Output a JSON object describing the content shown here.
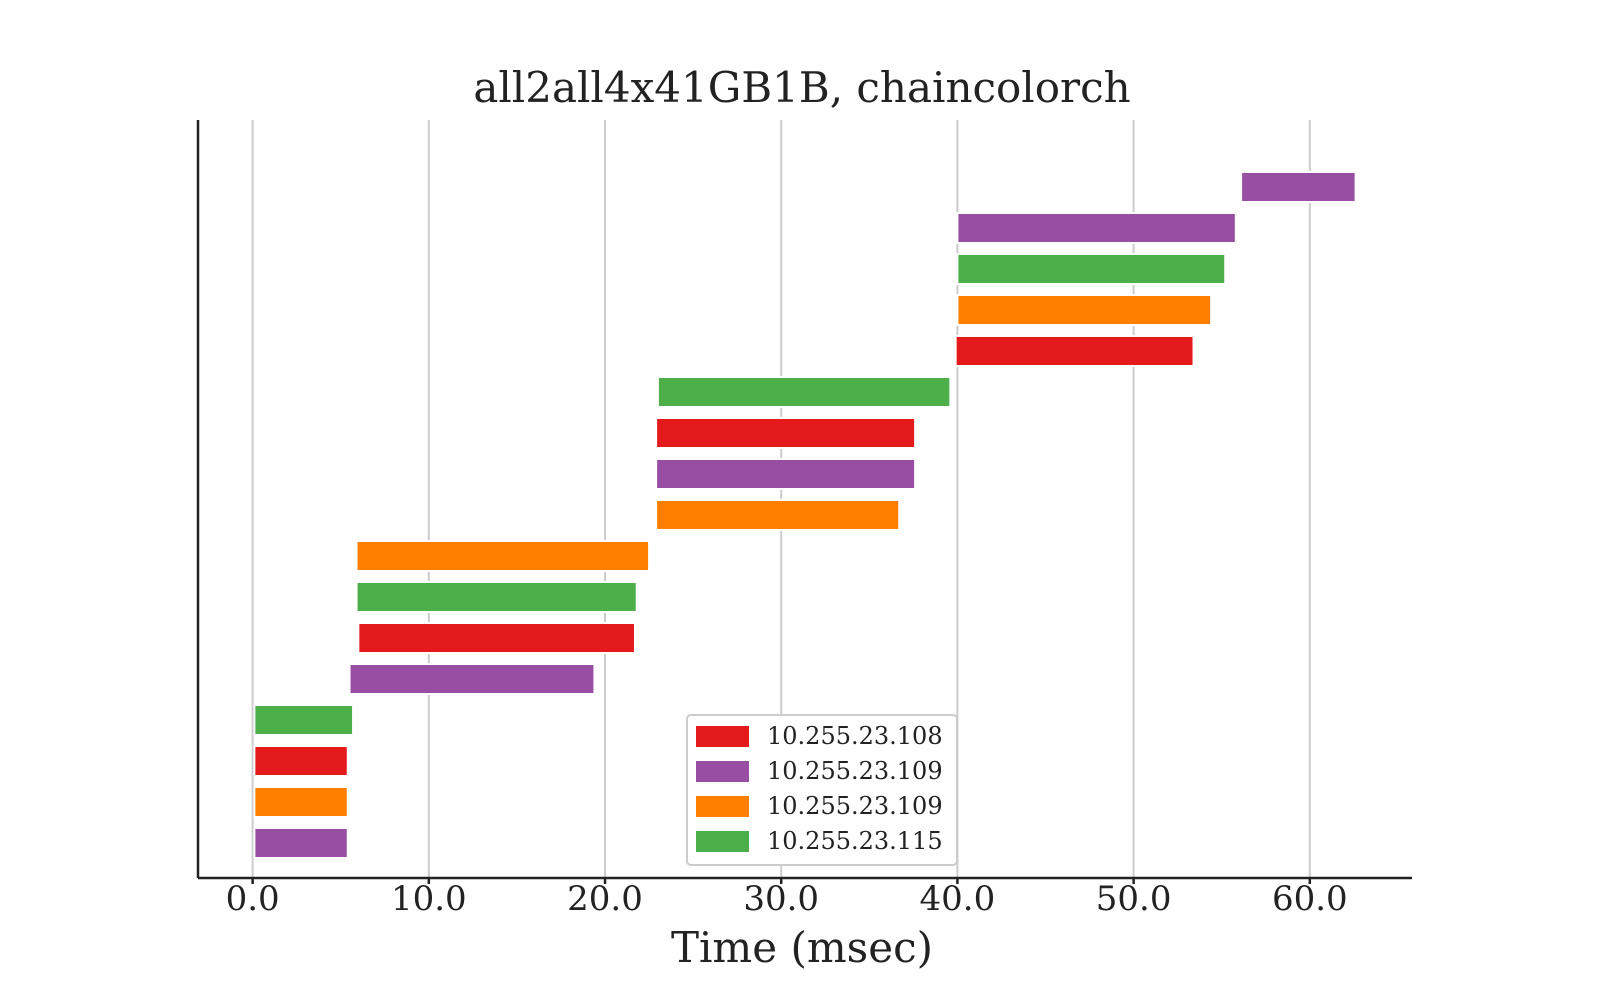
{
  "chart_data": {
    "type": "bar",
    "orientation": "horizontal",
    "title": "all2all4x41GB1B, chaincolorch",
    "xlabel": "Time (msec)",
    "ylabel": "",
    "xlim": [
      -3.1,
      65.8
    ],
    "xticks": [
      0,
      10,
      20,
      30,
      40,
      50,
      60
    ],
    "xtick_labels": [
      "0.0",
      "10.0",
      "20.0",
      "30.0",
      "40.0",
      "50.0",
      "60.0"
    ],
    "grid": "vertical",
    "legend_position": "bottom-center",
    "series": [
      {
        "name": "10.255.23.108",
        "color": "#e41a1c"
      },
      {
        "name": "10.255.23.109",
        "color": "#984ea3"
      },
      {
        "name": "10.255.23.109",
        "color": "#ff7f00"
      },
      {
        "name": "10.255.23.115",
        "color": "#4daf4a"
      }
    ],
    "bars": [
      {
        "row": 1,
        "series": 1,
        "start": 0.1,
        "end": 5.4
      },
      {
        "row": 2,
        "series": 2,
        "start": 0.1,
        "end": 5.4
      },
      {
        "row": 3,
        "series": 0,
        "start": 0.1,
        "end": 5.4
      },
      {
        "row": 4,
        "series": 3,
        "start": 0.1,
        "end": 5.7
      },
      {
        "row": 5,
        "series": 1,
        "start": 5.5,
        "end": 19.4
      },
      {
        "row": 6,
        "series": 0,
        "start": 6.0,
        "end": 21.7
      },
      {
        "row": 7,
        "series": 3,
        "start": 5.9,
        "end": 21.8
      },
      {
        "row": 8,
        "series": 2,
        "start": 5.9,
        "end": 22.5
      },
      {
        "row": 9,
        "series": 2,
        "start": 22.9,
        "end": 36.7
      },
      {
        "row": 10,
        "series": 1,
        "start": 22.9,
        "end": 37.6
      },
      {
        "row": 11,
        "series": 0,
        "start": 22.9,
        "end": 37.6
      },
      {
        "row": 12,
        "series": 3,
        "start": 23.0,
        "end": 39.6
      },
      {
        "row": 13,
        "series": 0,
        "start": 39.9,
        "end": 53.4
      },
      {
        "row": 14,
        "series": 2,
        "start": 40.0,
        "end": 54.4
      },
      {
        "row": 15,
        "series": 3,
        "start": 40.0,
        "end": 55.2
      },
      {
        "row": 16,
        "series": 1,
        "start": 40.0,
        "end": 55.8
      },
      {
        "row": 17,
        "series": 1,
        "start": 56.1,
        "end": 62.6
      }
    ]
  }
}
